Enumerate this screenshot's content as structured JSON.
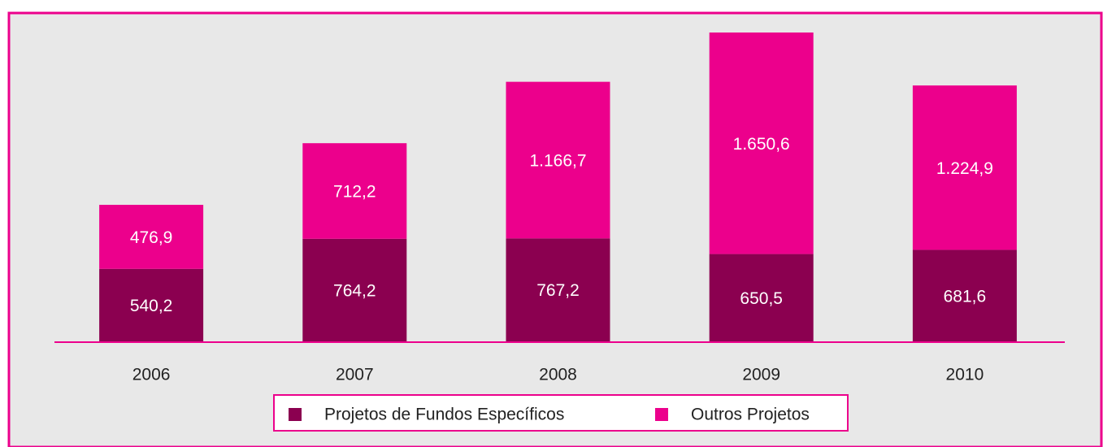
{
  "chart_data": {
    "type": "stacked-bar",
    "categories": [
      "2006",
      "2007",
      "2008",
      "2009",
      "2010"
    ],
    "series": [
      {
        "name": "Projetos de Fundos Específicos",
        "color": "#8b0050",
        "values": [
          540.2,
          764.2,
          767.2,
          650.5,
          681.6
        ],
        "value_labels": [
          "540,2",
          "764,2",
          "767,2",
          "650,5",
          "681,6"
        ]
      },
      {
        "name": "Outros Projetos",
        "color": "#ec008c",
        "values": [
          476.9,
          712.2,
          1166.7,
          1650.6,
          1224.9
        ],
        "value_labels": [
          "476,9",
          "712,2",
          "1.166,7",
          "1.650,6",
          "1.224,9"
        ]
      }
    ]
  }
}
